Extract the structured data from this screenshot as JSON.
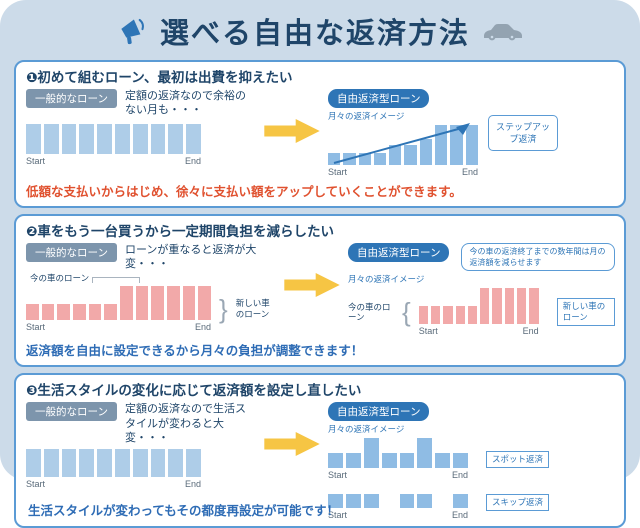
{
  "header": {
    "title": "選べる自由な返済方法"
  },
  "labels": {
    "start": "Start",
    "end": "End"
  },
  "colors": {
    "background": "#ccdbe9",
    "title_navy": "#1f4569",
    "accent_blue": "#2e75b6",
    "panel_border": "#5b9bd5",
    "badge_gray": "#7d95ac",
    "bar_blue": "#aecde8",
    "bar_blue_dark": "#8fbce4",
    "bar_pink": "#f2a9a9",
    "arrow_yellow": "#f6c544",
    "footer_red": "#e0512f",
    "footer_blue": "#2e6cb5",
    "car_gray": "#93a3b1"
  },
  "sections": [
    {
      "heading": "❶初めて組むローン、最初は出費を抑えたい",
      "general_badge": "一般的なローン",
      "general_desc": "定額の返済なので余裕のない月も・・・",
      "general_bars": [
        1,
        1,
        1,
        1,
        1,
        1,
        1,
        1,
        1,
        1
      ],
      "free_badge": "自由返済型ローン",
      "free_sublabel": "月々の返済イメージ",
      "free_bars": [
        0.3,
        0.3,
        0.3,
        0.3,
        0.5,
        0.5,
        0.65,
        1,
        1,
        1
      ],
      "tag": "ステップアップ返済",
      "footer": "低額な支払いからはじめ、徐々に支払い額をアップしていくことができます。"
    },
    {
      "heading": "❷車をもう一台買うから一定期間負担を減らしたい",
      "general_badge": "一般的なローン",
      "general_desc": "ローンが重なると返済が大変・・・",
      "general_bars": [
        0.45,
        0.45,
        0.45,
        0.45,
        0.45,
        0.45,
        1,
        1,
        1,
        1,
        1,
        1
      ],
      "current_loan_label": "今の車のローン",
      "new_loan_label": "新しい車のローン",
      "free_badge": "自由返済型ローン",
      "free_sublabel": "月々の返済イメージ",
      "callout": "今の車の返済終了までの数年間は月の返済額を減らせます",
      "free_bars": [
        0.5,
        0.5,
        0.5,
        0.5,
        0.5,
        1,
        1,
        1,
        1,
        1
      ],
      "footer": "返済額を自由に設定できるから月々の負担が調整できます！"
    },
    {
      "heading": "❸生活スタイルの変化に応じて返済額を設定し直したい",
      "general_badge": "一般的なローン",
      "general_desc": "定額の返済なので生活スタイルが変わると大変・・・",
      "general_bars": [
        1,
        1,
        1,
        1,
        1,
        1,
        1,
        1,
        1,
        1
      ],
      "free_badge": "自由返済型ローン",
      "free_sublabel": "月々の返済イメージ",
      "spot_bars": [
        0.5,
        0.5,
        1,
        0.5,
        0.5,
        1,
        0.5,
        0.5
      ],
      "spot_label": "スポット返済",
      "skip_bars": [
        0.6,
        0.6,
        0.6,
        0,
        0.6,
        0.6,
        0,
        0.6
      ],
      "skip_label": "スキップ返済",
      "footer": "生活スタイルが変わってもその都度再設定が可能です！"
    }
  ]
}
